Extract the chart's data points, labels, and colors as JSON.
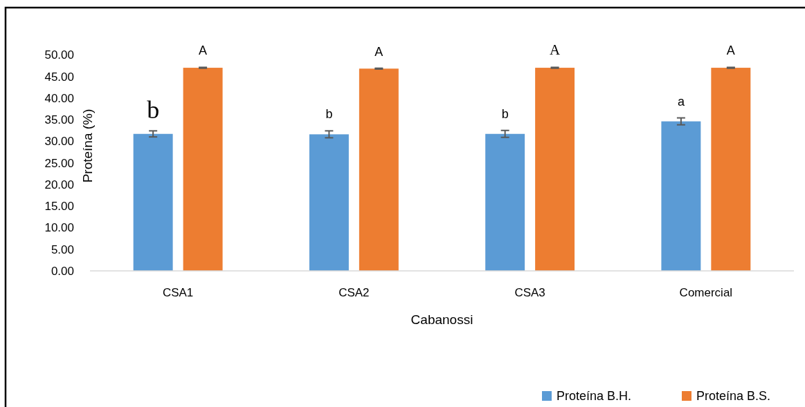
{
  "chart_data": {
    "type": "bar",
    "xlabel": "Cabanossi",
    "ylabel": "Proteína (%)",
    "categories": [
      "CSA1",
      "CSA2",
      "CSA3",
      "Comercial"
    ],
    "series": [
      {
        "name": "Proteína B.H.",
        "color": "#5b9bd5",
        "values": [
          31.7,
          31.6,
          31.7,
          34.6
        ],
        "errors": [
          0.7,
          0.8,
          0.8,
          0.8
        ],
        "value_labels": [
          "b",
          "b",
          "b",
          "a"
        ]
      },
      {
        "name": "Proteína B.S.",
        "color": "#ed7d31",
        "values": [
          47.0,
          46.8,
          47.0,
          47.0
        ],
        "errors": [
          0.1,
          0.1,
          0.1,
          0.1
        ],
        "value_labels": [
          "A",
          "A",
          "A",
          "A"
        ]
      }
    ],
    "ylim": [
      0,
      50
    ],
    "yticks": [
      {
        "value": 0,
        "label": "0.00"
      },
      {
        "value": 5,
        "label": "5.00"
      },
      {
        "value": 10,
        "label": "10.00"
      },
      {
        "value": 15,
        "label": "15.00"
      },
      {
        "value": 20,
        "label": "20.00"
      },
      {
        "value": 25,
        "label": "25.00"
      },
      {
        "value": 30,
        "label": "30.00"
      },
      {
        "value": 35,
        "label": "35.00"
      },
      {
        "value": 40,
        "label": "40.00"
      },
      {
        "value": 45,
        "label": "45.00"
      },
      {
        "value": 50,
        "label": "50.00"
      }
    ],
    "grid": false,
    "legend": "bottom right"
  }
}
